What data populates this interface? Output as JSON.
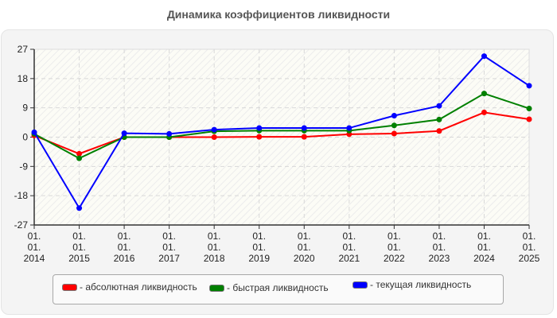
{
  "chart_data": {
    "type": "line",
    "title": "Динамика коэффициентов ликвидности",
    "xlabel": "",
    "ylabel": "",
    "ylim": [
      -27,
      27
    ],
    "yticks": [
      27,
      18,
      9,
      0,
      -9,
      -18,
      -27
    ],
    "grid": true,
    "legend_position": "bottom",
    "categories": [
      "01.01.2014",
      "01.01.2015",
      "01.01.2016",
      "01.01.2017",
      "01.01.2018",
      "01.01.2019",
      "01.01.2020",
      "01.01.2021",
      "01.01.2022",
      "01.01.2023",
      "01.01.2024",
      "01.01.2025"
    ],
    "category_lines": [
      [
        "01.",
        "01.",
        "2014"
      ],
      [
        "01.",
        "01.",
        "2015"
      ],
      [
        "01.",
        "01.",
        "2016"
      ],
      [
        "01.",
        "01.",
        "2017"
      ],
      [
        "01.",
        "01.",
        "2018"
      ],
      [
        "01.",
        "01.",
        "2019"
      ],
      [
        "01.",
        "01.",
        "2020"
      ],
      [
        "01.",
        "01.",
        "2021"
      ],
      [
        "01.",
        "01.",
        "2022"
      ],
      [
        "01.",
        "01.",
        "2023"
      ],
      [
        "01.",
        "01.",
        "2024"
      ],
      [
        "01.",
        "01.",
        "2025"
      ]
    ],
    "series": [
      {
        "name": "абсолютная ликвидность",
        "color": "#ff0000",
        "values": [
          0.5,
          -5.1,
          0.0,
          0.0,
          0.0,
          0.1,
          0.1,
          0.9,
          1.1,
          1.9,
          7.6,
          5.5
        ]
      },
      {
        "name": "быстрая ликвидность",
        "color": "#008000",
        "values": [
          1.0,
          -6.5,
          0.0,
          0.0,
          1.8,
          2.0,
          2.0,
          2.0,
          3.6,
          5.4,
          13.4,
          8.8
        ]
      },
      {
        "name": "текущая ликвидность",
        "color": "#0000ff",
        "values": [
          1.5,
          -21.8,
          1.2,
          1.0,
          2.3,
          2.8,
          2.8,
          2.8,
          6.6,
          9.6,
          24.9,
          15.8
        ]
      }
    ]
  },
  "legend": {
    "items": [
      {
        "label": "- абсолютная ликвидность",
        "color": "#ff0000"
      },
      {
        "label": "- быстрая ликвидность",
        "color": "#008000"
      },
      {
        "label": "- текущая ликвидность",
        "color": "#0000ff"
      }
    ]
  }
}
